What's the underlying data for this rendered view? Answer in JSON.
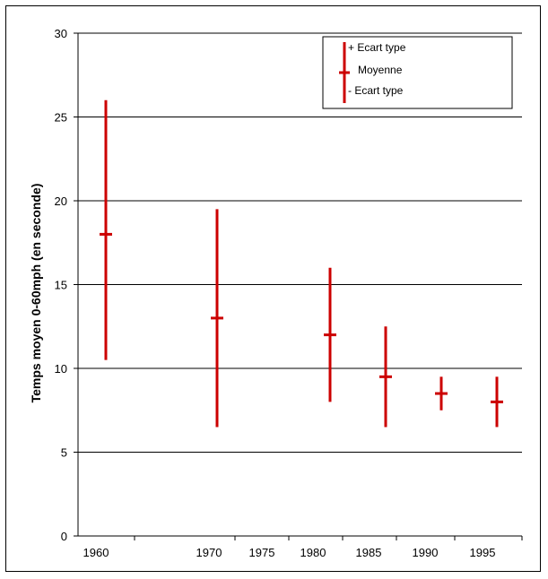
{
  "chart_data": {
    "type": "error-bar",
    "ylabel": "Temps moyen 0-60mph (en seconde)",
    "ylim": [
      0,
      30
    ],
    "y_ticks": [
      0,
      5,
      10,
      15,
      20,
      25,
      30
    ],
    "x_tick_labels": [
      "1960",
      "1970",
      "1975",
      "1980",
      "1985",
      "1990",
      "1995"
    ],
    "points": [
      {
        "label": "1960",
        "mean": 18,
        "plus_sd": 26,
        "minus_sd": 10.5
      },
      {
        "label": "1970",
        "mean": 13,
        "plus_sd": 19.5,
        "minus_sd": 6.5
      },
      {
        "label": "1980",
        "mean": 12,
        "plus_sd": 16,
        "minus_sd": 8
      },
      {
        "label": "1985",
        "mean": 9.5,
        "plus_sd": 12.5,
        "minus_sd": 6.5
      },
      {
        "label": "1990",
        "mean": 8.5,
        "plus_sd": 9.5,
        "minus_sd": 7.5
      },
      {
        "label": "1995",
        "mean": 8,
        "plus_sd": 9.5,
        "minus_sd": 6.5
      }
    ],
    "grid": true,
    "legend_position": "top-right",
    "legend": {
      "plus_label": "+ Ecart type",
      "mean_label": "Moyenne",
      "minus_label": "- Ecart type"
    },
    "colors": {
      "series": "#cc0000",
      "grid": "#000000"
    }
  }
}
